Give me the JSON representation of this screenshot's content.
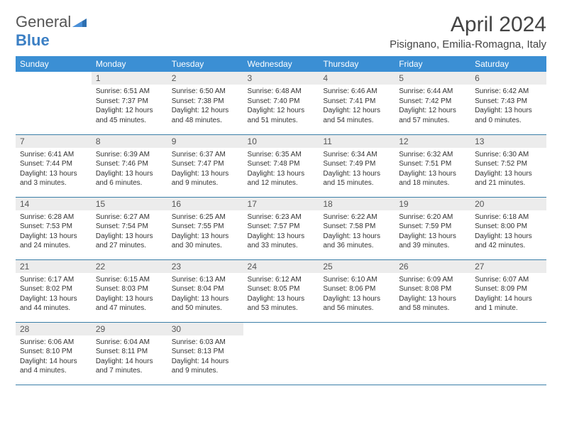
{
  "logo": {
    "text1": "General",
    "text2": "Blue"
  },
  "title": "April 2024",
  "location": "Pisignano, Emilia-Romagna, Italy",
  "colors": {
    "header_bg": "#3b8fd4",
    "header_text": "#ffffff",
    "daynum_bg": "#ececec",
    "border": "#3b7fa8",
    "logo_gray": "#555555",
    "logo_blue": "#3b7fc4"
  },
  "weekdays": [
    "Sunday",
    "Monday",
    "Tuesday",
    "Wednesday",
    "Thursday",
    "Friday",
    "Saturday"
  ],
  "weeks": [
    [
      null,
      {
        "n": "1",
        "sr": "Sunrise: 6:51 AM",
        "ss": "Sunset: 7:37 PM",
        "dl": "Daylight: 12 hours and 45 minutes."
      },
      {
        "n": "2",
        "sr": "Sunrise: 6:50 AM",
        "ss": "Sunset: 7:38 PM",
        "dl": "Daylight: 12 hours and 48 minutes."
      },
      {
        "n": "3",
        "sr": "Sunrise: 6:48 AM",
        "ss": "Sunset: 7:40 PM",
        "dl": "Daylight: 12 hours and 51 minutes."
      },
      {
        "n": "4",
        "sr": "Sunrise: 6:46 AM",
        "ss": "Sunset: 7:41 PM",
        "dl": "Daylight: 12 hours and 54 minutes."
      },
      {
        "n": "5",
        "sr": "Sunrise: 6:44 AM",
        "ss": "Sunset: 7:42 PM",
        "dl": "Daylight: 12 hours and 57 minutes."
      },
      {
        "n": "6",
        "sr": "Sunrise: 6:42 AM",
        "ss": "Sunset: 7:43 PM",
        "dl": "Daylight: 13 hours and 0 minutes."
      }
    ],
    [
      {
        "n": "7",
        "sr": "Sunrise: 6:41 AM",
        "ss": "Sunset: 7:44 PM",
        "dl": "Daylight: 13 hours and 3 minutes."
      },
      {
        "n": "8",
        "sr": "Sunrise: 6:39 AM",
        "ss": "Sunset: 7:46 PM",
        "dl": "Daylight: 13 hours and 6 minutes."
      },
      {
        "n": "9",
        "sr": "Sunrise: 6:37 AM",
        "ss": "Sunset: 7:47 PM",
        "dl": "Daylight: 13 hours and 9 minutes."
      },
      {
        "n": "10",
        "sr": "Sunrise: 6:35 AM",
        "ss": "Sunset: 7:48 PM",
        "dl": "Daylight: 13 hours and 12 minutes."
      },
      {
        "n": "11",
        "sr": "Sunrise: 6:34 AM",
        "ss": "Sunset: 7:49 PM",
        "dl": "Daylight: 13 hours and 15 minutes."
      },
      {
        "n": "12",
        "sr": "Sunrise: 6:32 AM",
        "ss": "Sunset: 7:51 PM",
        "dl": "Daylight: 13 hours and 18 minutes."
      },
      {
        "n": "13",
        "sr": "Sunrise: 6:30 AM",
        "ss": "Sunset: 7:52 PM",
        "dl": "Daylight: 13 hours and 21 minutes."
      }
    ],
    [
      {
        "n": "14",
        "sr": "Sunrise: 6:28 AM",
        "ss": "Sunset: 7:53 PM",
        "dl": "Daylight: 13 hours and 24 minutes."
      },
      {
        "n": "15",
        "sr": "Sunrise: 6:27 AM",
        "ss": "Sunset: 7:54 PM",
        "dl": "Daylight: 13 hours and 27 minutes."
      },
      {
        "n": "16",
        "sr": "Sunrise: 6:25 AM",
        "ss": "Sunset: 7:55 PM",
        "dl": "Daylight: 13 hours and 30 minutes."
      },
      {
        "n": "17",
        "sr": "Sunrise: 6:23 AM",
        "ss": "Sunset: 7:57 PM",
        "dl": "Daylight: 13 hours and 33 minutes."
      },
      {
        "n": "18",
        "sr": "Sunrise: 6:22 AM",
        "ss": "Sunset: 7:58 PM",
        "dl": "Daylight: 13 hours and 36 minutes."
      },
      {
        "n": "19",
        "sr": "Sunrise: 6:20 AM",
        "ss": "Sunset: 7:59 PM",
        "dl": "Daylight: 13 hours and 39 minutes."
      },
      {
        "n": "20",
        "sr": "Sunrise: 6:18 AM",
        "ss": "Sunset: 8:00 PM",
        "dl": "Daylight: 13 hours and 42 minutes."
      }
    ],
    [
      {
        "n": "21",
        "sr": "Sunrise: 6:17 AM",
        "ss": "Sunset: 8:02 PM",
        "dl": "Daylight: 13 hours and 44 minutes."
      },
      {
        "n": "22",
        "sr": "Sunrise: 6:15 AM",
        "ss": "Sunset: 8:03 PM",
        "dl": "Daylight: 13 hours and 47 minutes."
      },
      {
        "n": "23",
        "sr": "Sunrise: 6:13 AM",
        "ss": "Sunset: 8:04 PM",
        "dl": "Daylight: 13 hours and 50 minutes."
      },
      {
        "n": "24",
        "sr": "Sunrise: 6:12 AM",
        "ss": "Sunset: 8:05 PM",
        "dl": "Daylight: 13 hours and 53 minutes."
      },
      {
        "n": "25",
        "sr": "Sunrise: 6:10 AM",
        "ss": "Sunset: 8:06 PM",
        "dl": "Daylight: 13 hours and 56 minutes."
      },
      {
        "n": "26",
        "sr": "Sunrise: 6:09 AM",
        "ss": "Sunset: 8:08 PM",
        "dl": "Daylight: 13 hours and 58 minutes."
      },
      {
        "n": "27",
        "sr": "Sunrise: 6:07 AM",
        "ss": "Sunset: 8:09 PM",
        "dl": "Daylight: 14 hours and 1 minute."
      }
    ],
    [
      {
        "n": "28",
        "sr": "Sunrise: 6:06 AM",
        "ss": "Sunset: 8:10 PM",
        "dl": "Daylight: 14 hours and 4 minutes."
      },
      {
        "n": "29",
        "sr": "Sunrise: 6:04 AM",
        "ss": "Sunset: 8:11 PM",
        "dl": "Daylight: 14 hours and 7 minutes."
      },
      {
        "n": "30",
        "sr": "Sunrise: 6:03 AM",
        "ss": "Sunset: 8:13 PM",
        "dl": "Daylight: 14 hours and 9 minutes."
      },
      null,
      null,
      null,
      null
    ]
  ]
}
